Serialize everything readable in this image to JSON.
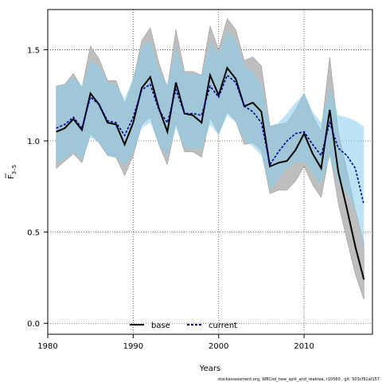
{
  "chart_data": {
    "type": "line",
    "xlabel": "Years",
    "ylabel_main": "F",
    "ylabel_sub": "3–5",
    "xlim": [
      1980,
      2018
    ],
    "ylim": [
      -0.06,
      1.72
    ],
    "x_ticks": [
      1980,
      1990,
      2000,
      2010
    ],
    "y_ticks": [
      0.0,
      0.5,
      1.0,
      1.5
    ],
    "x_tick_labels": [
      "1980",
      "1990",
      "2000",
      "2010"
    ],
    "y_tick_labels": [
      "0.0",
      "0.5",
      "1.0",
      "1.5"
    ],
    "grid": true,
    "legend_position": "bottom",
    "footer": "stockassessment.org, WBCod_new_split_and_reakrea, r10560 , git: 503cf91af157",
    "x": [
      1981,
      1982,
      1983,
      1984,
      1985,
      1986,
      1987,
      1988,
      1989,
      1990,
      1991,
      1992,
      1993,
      1994,
      1995,
      1996,
      1997,
      1998,
      1999,
      2000,
      2001,
      2002,
      2003,
      2004,
      2005,
      2006,
      2007,
      2008,
      2009,
      2010,
      2011,
      2012,
      2013,
      2014,
      2015,
      2016,
      2017
    ],
    "series": [
      {
        "name": "base",
        "color": "#000000",
        "band_color": "#bebebe",
        "values": [
          1.05,
          1.07,
          1.12,
          1.06,
          1.26,
          1.2,
          1.1,
          1.09,
          0.98,
          1.1,
          1.29,
          1.35,
          1.18,
          1.05,
          1.32,
          1.15,
          1.14,
          1.1,
          1.36,
          1.25,
          1.4,
          1.34,
          1.19,
          1.21,
          1.16,
          0.86,
          0.88,
          0.89,
          0.95,
          1.04,
          0.93,
          0.85,
          1.17,
          0.83,
          0.63,
          0.42,
          0.24
        ],
        "lower": [
          0.85,
          0.89,
          0.93,
          0.88,
          1.04,
          0.99,
          0.92,
          0.91,
          0.81,
          0.92,
          1.09,
          1.13,
          0.98,
          0.87,
          1.1,
          0.94,
          0.94,
          0.91,
          1.13,
          1.04,
          1.16,
          1.11,
          0.98,
          0.99,
          0.95,
          0.71,
          0.73,
          0.73,
          0.78,
          0.86,
          0.76,
          0.69,
          0.94,
          0.66,
          0.46,
          0.27,
          0.13
        ],
        "upper": [
          1.3,
          1.31,
          1.37,
          1.29,
          1.52,
          1.45,
          1.33,
          1.33,
          1.2,
          1.33,
          1.55,
          1.62,
          1.43,
          1.29,
          1.61,
          1.38,
          1.38,
          1.36,
          1.63,
          1.5,
          1.67,
          1.61,
          1.44,
          1.46,
          1.41,
          1.08,
          1.09,
          1.1,
          1.17,
          1.26,
          1.14,
          1.05,
          1.46,
          1.05,
          0.84,
          0.62,
          0.44
        ]
      },
      {
        "name": "current",
        "color": "#00008b",
        "band_color": "#87ceeb",
        "values": [
          1.07,
          1.09,
          1.13,
          1.07,
          1.24,
          1.2,
          1.11,
          1.1,
          1.03,
          1.13,
          1.28,
          1.31,
          1.17,
          1.1,
          1.28,
          1.15,
          1.15,
          1.14,
          1.3,
          1.24,
          1.36,
          1.32,
          1.19,
          1.16,
          1.1,
          0.87,
          0.94,
          1.0,
          1.04,
          1.05,
          0.98,
          0.92,
          1.1,
          0.96,
          0.92,
          0.85,
          0.65
        ],
        "lower": [
          0.88,
          0.9,
          0.94,
          0.89,
          1.02,
          0.99,
          0.92,
          0.91,
          0.86,
          0.94,
          1.07,
          1.1,
          0.98,
          0.92,
          1.07,
          0.96,
          0.96,
          0.95,
          1.09,
          1.03,
          1.14,
          1.1,
          1.0,
          0.97,
          0.92,
          0.73,
          0.79,
          0.85,
          0.88,
          0.89,
          0.82,
          0.76,
          0.91,
          0.77,
          0.71,
          0.62,
          0.4
        ],
        "upper": [
          1.3,
          1.31,
          1.35,
          1.3,
          1.44,
          1.41,
          1.32,
          1.31,
          1.23,
          1.35,
          1.52,
          1.55,
          1.39,
          1.31,
          1.52,
          1.37,
          1.37,
          1.36,
          1.54,
          1.48,
          1.6,
          1.56,
          1.41,
          1.38,
          1.31,
          1.08,
          1.1,
          1.15,
          1.21,
          1.26,
          1.16,
          1.1,
          1.3,
          1.14,
          1.13,
          1.11,
          1.08
        ]
      }
    ]
  }
}
